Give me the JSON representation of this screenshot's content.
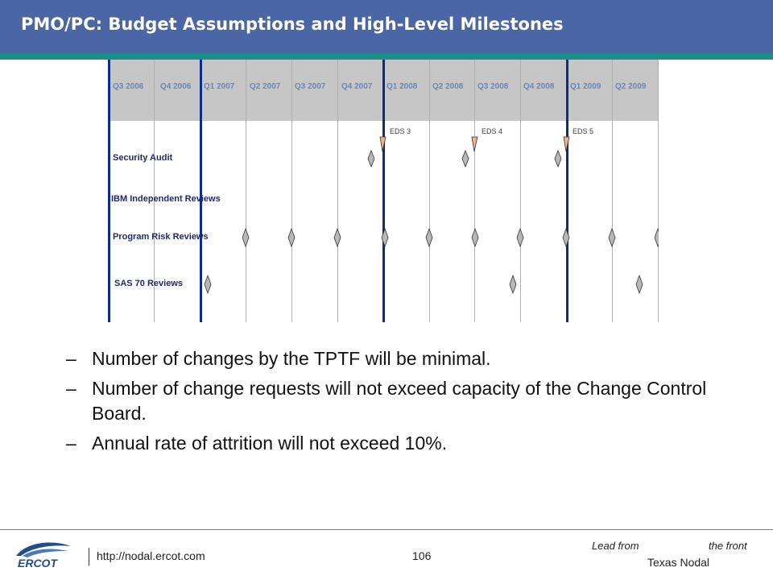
{
  "header": {
    "title": "PMO/PC: Budget Assumptions and High-Level Milestones"
  },
  "timeline": {
    "quarters": [
      "Q3 2006",
      "Q4 2006",
      "Q1 2007",
      "Q2 2007",
      "Q3 2007",
      "Q4 2007",
      "Q1 2008",
      "Q2 2008",
      "Q3 2008",
      "Q4 2008",
      "Q1 2009",
      "Q2 2009"
    ],
    "eds_markers": [
      "EDS 3",
      "EDS 4",
      "EDS 5"
    ],
    "rows": [
      "Security Audit",
      "IBM Independent Reviews",
      "Program Risk Reviews",
      "SAS 70 Reviews"
    ],
    "colors": {
      "header_bg": "#c6c6c6",
      "quarter_text": "#6a86b8",
      "thick_line": "#0c2b8a",
      "eds_fill": "#f0b38a",
      "milestone_fill": "#b8b8b8"
    }
  },
  "bullets": [
    {
      "dash": "–",
      "text": "Number of changes by the TPTF will be minimal."
    },
    {
      "dash": "–",
      "text": "Number of change requests will not exceed capacity of the Change Control Board."
    },
    {
      "dash": "–",
      "text": "Annual rate of attrition will not exceed 10%."
    }
  ],
  "footer": {
    "logo_text": "ERCOT",
    "url": "http://nodal.ercot.com",
    "page_number": "106",
    "tagline_1": "Lead from",
    "tagline_2": "the front",
    "tagline_3": "Texas Nodal"
  }
}
